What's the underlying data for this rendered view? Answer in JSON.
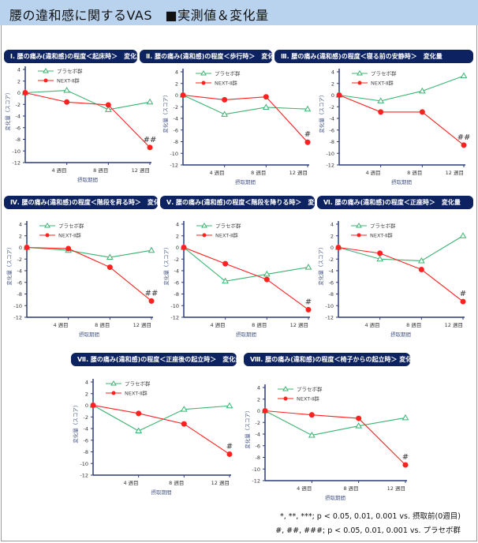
{
  "header": {
    "title": "腰の違和感に関するVAS　■実測値＆変化量"
  },
  "legend": {
    "placebo": "プラセボ群",
    "next": "NEXT-Ⅱ群"
  },
  "colors": {
    "placebo": "#3cb371",
    "next": "#ff2020",
    "title_bar": "#0d2260",
    "axis": "#2a3a7a",
    "header_bg": "#b9d3ee"
  },
  "footnotes": [
    "*, **, ***; p < 0.05, 0.01, 0.001  vs. 摂取前(0週目)",
    "#, ##, ###; p < 0.05, 0.01, 0.001  vs. プラセボ群"
  ],
  "chart_data": [
    {
      "type": "line",
      "title": "Ⅰ. 腰の痛み(違和感)の程度＜起床時＞　変化量",
      "xlabel": "摂取期間",
      "ylabel": "変化量（スコア）",
      "x": [
        0,
        4,
        8,
        12
      ],
      "x_tick_labels": [
        "4 週目",
        "8 週目",
        "12 週目"
      ],
      "ylim": [
        -12,
        4
      ],
      "y_ticks": [
        4,
        2,
        0,
        -2,
        -4,
        -6,
        -8,
        -10,
        -12
      ],
      "legend": "top-left",
      "series": [
        {
          "name": "プラセボ群",
          "values": [
            0,
            0.4,
            -2.9,
            -1.6
          ]
        },
        {
          "name": "NEXT-Ⅱ群",
          "values": [
            0,
            -1.6,
            -2.1,
            -9.4
          ]
        }
      ],
      "annotation": "##"
    },
    {
      "type": "line",
      "title": "Ⅱ. 腰の痛み(違和感)の程度＜歩行時＞　変化量",
      "xlabel": "摂取期間",
      "ylabel": "変化量（スコア）",
      "x": [
        0,
        4,
        8,
        12
      ],
      "x_tick_labels": [
        "4 週目",
        "8 週目",
        "12 週目"
      ],
      "ylim": [
        -12,
        4
      ],
      "y_ticks": [
        4,
        2,
        0,
        -2,
        -4,
        -6,
        -8,
        -10,
        -12
      ],
      "legend": "top-left",
      "series": [
        {
          "name": "プラセボ群",
          "values": [
            0,
            -3.3,
            -2.1,
            -2.4
          ]
        },
        {
          "name": "NEXT-Ⅱ群",
          "values": [
            0,
            -0.8,
            -0.3,
            -8.1
          ]
        }
      ],
      "annotation": "#"
    },
    {
      "type": "line",
      "title": "Ⅲ. 腰の痛み(違和感)の程度＜寝る前の安静時＞　変化量",
      "xlabel": "摂取期間",
      "ylabel": "変化量（スコア）",
      "x": [
        0,
        4,
        8,
        12
      ],
      "x_tick_labels": [
        "4 週目",
        "8 週目",
        "12 週目"
      ],
      "ylim": [
        -12,
        4
      ],
      "y_ticks": [
        4,
        2,
        0,
        -2,
        -4,
        -6,
        -8,
        -10,
        -12
      ],
      "legend": "top-left",
      "series": [
        {
          "name": "プラセボ群",
          "values": [
            0,
            -1.0,
            0.7,
            3.3
          ]
        },
        {
          "name": "NEXT-Ⅱ群",
          "values": [
            0,
            -2.9,
            -2.9,
            -8.6
          ]
        }
      ],
      "annotation": "##"
    },
    {
      "type": "line",
      "title": "Ⅳ. 腰の痛み(違和感)の程度＜階段を昇る時＞　変化量",
      "xlabel": "摂取期間",
      "ylabel": "変化量（スコア）",
      "x": [
        0,
        4,
        8,
        12
      ],
      "x_tick_labels": [
        "4 週目",
        "8 週目",
        "12 週目"
      ],
      "ylim": [
        -12,
        4
      ],
      "y_ticks": [
        4,
        2,
        0,
        -2,
        -4,
        -6,
        -8,
        -10,
        -12
      ],
      "legend": "top-left",
      "series": [
        {
          "name": "プラセボ群",
          "values": [
            0,
            -0.5,
            -1.7,
            -0.5
          ]
        },
        {
          "name": "NEXT-Ⅱ群",
          "values": [
            0,
            -0.2,
            -3.4,
            -9.2
          ]
        }
      ],
      "annotation": "##"
    },
    {
      "type": "line",
      "title": "Ⅴ. 腰の痛み(違和感)の程度＜階段を降りる時＞　変化量",
      "xlabel": "摂取期間",
      "ylabel": "変化量（スコア）",
      "x": [
        0,
        4,
        8,
        12
      ],
      "x_tick_labels": [
        "4 週目",
        "8 週目",
        "12 週目"
      ],
      "ylim": [
        -12,
        4
      ],
      "y_ticks": [
        4,
        2,
        0,
        -2,
        -4,
        -6,
        -8,
        -10,
        -12
      ],
      "legend": "top-left",
      "series": [
        {
          "name": "プラセボ群",
          "values": [
            0,
            -5.8,
            -4.6,
            -3.4
          ]
        },
        {
          "name": "NEXT-Ⅱ群",
          "values": [
            0,
            -2.8,
            -5.5,
            -10.7
          ]
        }
      ],
      "annotation": "#"
    },
    {
      "type": "line",
      "title": "Ⅵ. 腰の痛み(違和感)の程度＜正座時＞　変化量",
      "xlabel": "摂取期間",
      "ylabel": "変化量（スコア）",
      "x": [
        0,
        4,
        8,
        12
      ],
      "x_tick_labels": [
        "4 週目",
        "8 週目",
        "12 週目"
      ],
      "ylim": [
        -12,
        4
      ],
      "y_ticks": [
        4,
        2,
        0,
        -2,
        -4,
        -6,
        -8,
        -10,
        -12
      ],
      "legend": "top-left",
      "series": [
        {
          "name": "プラセボ群",
          "values": [
            0,
            -2.0,
            -2.3,
            2.0
          ]
        },
        {
          "name": "NEXT-Ⅱ群",
          "values": [
            0,
            -1.0,
            -3.8,
            -9.3
          ]
        }
      ],
      "annotation": "#"
    },
    {
      "type": "line",
      "title": "Ⅶ. 腰の痛み(違和感)の程度＜正座後の起立時＞　変化量",
      "xlabel": "摂取期間",
      "ylabel": "変化量（スコア）",
      "x": [
        0,
        4,
        8,
        12
      ],
      "x_tick_labels": [
        "4 週目",
        "8 週目",
        "12 週目"
      ],
      "ylim": [
        -12,
        4
      ],
      "y_ticks": [
        4,
        2,
        0,
        -2,
        -4,
        -6,
        -8,
        -10,
        -12
      ],
      "legend": "top-left",
      "series": [
        {
          "name": "プラセボ群",
          "values": [
            0,
            -4.4,
            -0.7,
            -0.1
          ]
        },
        {
          "name": "NEXT-Ⅱ群",
          "values": [
            0,
            -1.4,
            -3.2,
            -8.4
          ]
        }
      ],
      "annotation": "#"
    },
    {
      "type": "line",
      "title": "Ⅷ. 腰の痛み(違和感)の程度＜椅子からの起立時＞ 変化量",
      "xlabel": "摂取期間",
      "ylabel": "変化量（スコア）",
      "x": [
        0,
        4,
        8,
        12
      ],
      "x_tick_labels": [
        "4 週目",
        "8 週目",
        "12 週目"
      ],
      "ylim": [
        -12,
        4
      ],
      "y_ticks": [
        4,
        2,
        0,
        -2,
        -4,
        -6,
        -8,
        -10,
        -12
      ],
      "legend": "top-left",
      "series": [
        {
          "name": "プラセボ群",
          "values": [
            0,
            -4.2,
            -2.6,
            -1.2
          ]
        },
        {
          "name": "NEXT-Ⅱ群",
          "values": [
            0,
            -0.7,
            -1.3,
            -9.3
          ]
        }
      ],
      "annotation": "#"
    }
  ]
}
